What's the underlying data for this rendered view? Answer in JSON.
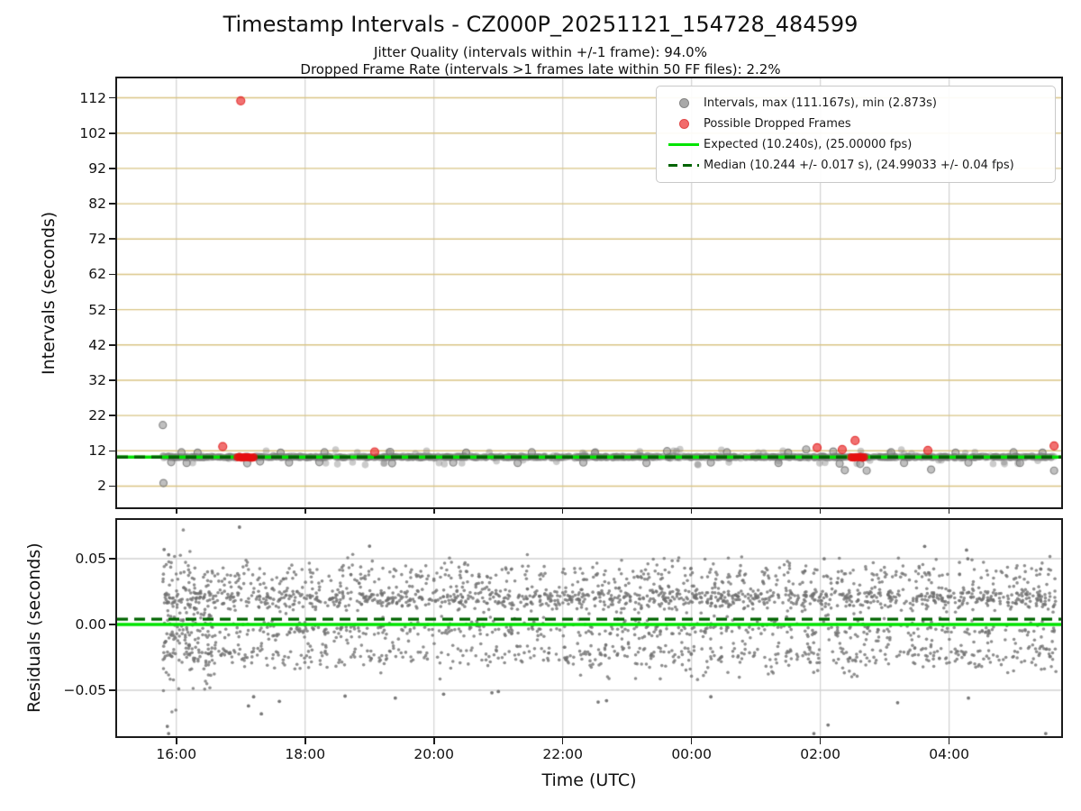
{
  "title": "Timestamp Intervals - CZ000P_20251121_154728_484599",
  "subtitle1": "Jitter Quality (intervals within +/-1 frame): 94.0%",
  "subtitle2": "Dropped Frame Rate (intervals >1 frames late within 50 FF files): 2.2%",
  "colors": {
    "expected_line": "#00e400",
    "median_line": "#006400",
    "gray_marker": "#9a9a9a",
    "red_marker": "#f05050",
    "tan_grid": "#d9c483",
    "gray_grid": "#d2d2d2",
    "spine": "#1a1a1a"
  },
  "legend": {
    "items": [
      {
        "label": "Intervals, max (111.167s), min (2.873s)",
        "marker": "gray-dot"
      },
      {
        "label": "Possible Dropped Frames",
        "marker": "red-dot"
      },
      {
        "label": "Expected (10.240s), (25.00000 fps)",
        "marker": "green-solid-line"
      },
      {
        "label": "Median (10.244 +/- 0.017 s), (24.99033 +/- 0.04 fps)",
        "marker": "dark-green-dashed-line"
      }
    ]
  },
  "chart_data": [
    {
      "type": "scatter",
      "title": "Timestamp Intervals - CZ000P_20251121_154728_484599",
      "ylabel": "Intervals (seconds)",
      "ylim": [
        -4,
        117.5
      ],
      "yticks": [
        2,
        12,
        22,
        32,
        42,
        52,
        62,
        72,
        82,
        92,
        102,
        112
      ],
      "x_axis": {
        "unit": "hours since 15:00 UTC",
        "xlim": [
          0.08,
          14.74
        ],
        "ticks": [
          {
            "h": 1,
            "label": "16:00"
          },
          {
            "h": 3,
            "label": "18:00"
          },
          {
            "h": 5,
            "label": "20:00"
          },
          {
            "h": 7,
            "label": "22:00"
          },
          {
            "h": 9,
            "label": "00:00"
          },
          {
            "h": 11,
            "label": "02:00"
          },
          {
            "h": 13,
            "label": "04:00"
          }
        ]
      },
      "grid": {
        "horizontal_color": "#d9c483",
        "vertical_color": "#d2d2d2"
      },
      "expected_line": {
        "y": 10.24,
        "color": "#00e400",
        "style": "solid",
        "fps": 25.0
      },
      "median_line": {
        "y": 10.244,
        "color": "#006400",
        "style": "dashed",
        "fps": 24.99033
      },
      "stats": {
        "max_interval_s": 111.167,
        "min_interval_s": 2.873,
        "expected_s": 10.24,
        "expected_fps": 25.0,
        "median_s": 10.244,
        "median_s_err": 0.017,
        "median_fps": 24.99033,
        "median_fps_err": 0.04,
        "jitter_quality_pct": 94.0,
        "dropped_frame_rate_pct": 2.2
      },
      "gray_band": {
        "x_start": 0.79,
        "x_end": 14.66,
        "center_s": 10.24,
        "spread_s": 0.16,
        "count": 1500,
        "bump_fraction": 0.035
      },
      "gray_points": [
        [
          0.79,
          19.3
        ],
        [
          0.8,
          2.873
        ],
        [
          1.08,
          11.6
        ],
        [
          1.33,
          11.5
        ],
        [
          2.62,
          11.5
        ],
        [
          3.3,
          11.6
        ],
        [
          4.32,
          11.7
        ],
        [
          5.5,
          11.5
        ],
        [
          6.52,
          11.6
        ],
        [
          7.5,
          11.5
        ],
        [
          8.62,
          11.9
        ],
        [
          9.55,
          11.6
        ],
        [
          10.5,
          11.5
        ],
        [
          10.78,
          12.4
        ],
        [
          11.2,
          11.8
        ],
        [
          12.1,
          11.6
        ],
        [
          13.1,
          11.5
        ],
        [
          14.0,
          11.6
        ],
        [
          14.45,
          11.5
        ],
        [
          0.92,
          8.8
        ],
        [
          1.16,
          8.6
        ],
        [
          2.1,
          8.5
        ],
        [
          2.3,
          9.0
        ],
        [
          2.75,
          8.7
        ],
        [
          3.22,
          8.8
        ],
        [
          4.35,
          8.5
        ],
        [
          5.3,
          8.7
        ],
        [
          6.3,
          8.6
        ],
        [
          7.32,
          8.7
        ],
        [
          8.3,
          8.6
        ],
        [
          9.3,
          8.7
        ],
        [
          10.35,
          8.6
        ],
        [
          11.3,
          8.4
        ],
        [
          11.62,
          8.3
        ],
        [
          12.3,
          8.6
        ],
        [
          13.3,
          8.7
        ],
        [
          14.1,
          8.6
        ],
        [
          11.38,
          6.5
        ],
        [
          11.72,
          6.4
        ],
        [
          12.72,
          6.7
        ],
        [
          14.63,
          6.4
        ]
      ],
      "red_points": [
        [
          1.72,
          13.2
        ],
        [
          2.0,
          111.167
        ],
        [
          4.08,
          11.7
        ],
        [
          10.95,
          12.9
        ],
        [
          11.34,
          12.35
        ],
        [
          11.54,
          14.9
        ],
        [
          12.67,
          12.1
        ],
        [
          14.63,
          13.4
        ]
      ],
      "red_clusters": [
        {
          "x_start": 1.95,
          "x_end": 2.2,
          "y": 10.15,
          "count": 10
        },
        {
          "x_start": 11.48,
          "x_end": 11.68,
          "y": 10.15,
          "count": 8
        }
      ]
    },
    {
      "type": "scatter",
      "ylabel": "Residuals (seconds)",
      "xlabel": "Time (UTC)",
      "ylim": [
        -0.085,
        0.0795
      ],
      "yticks": [
        {
          "v": 0.05,
          "label": "0.05"
        },
        {
          "v": 0.0,
          "label": "0.00"
        },
        {
          "v": -0.05,
          "label": "−0.05"
        }
      ],
      "grid": {
        "horizontal_color": "#d2d2d2",
        "vertical_color": "#d2d2d2"
      },
      "expected_line": {
        "y": 0.0,
        "color": "#00e400",
        "style": "solid"
      },
      "median_line": {
        "y": 0.004,
        "color": "#006400",
        "style": "dashed"
      },
      "cloud": {
        "x_start": 0.79,
        "x_end": 14.66,
        "count": 2600,
        "bands": [
          {
            "center": 0.02,
            "sd": 0.0045,
            "weight": 0.4
          },
          {
            "center": 0.038,
            "sd": 0.005,
            "weight": 0.14
          },
          {
            "center": -0.004,
            "sd": 0.0035,
            "weight": 0.16
          },
          {
            "center": -0.0235,
            "sd": 0.005,
            "weight": 0.2
          },
          {
            "uniform": [
              -0.042,
              0.052
            ],
            "weight": 0.1
          }
        ],
        "early_extra": {
          "x_range": [
            0.79,
            1.55
          ],
          "count": 130,
          "sd": 0.028
        }
      },
      "outliers": [
        [
          0.81,
          0.057
        ],
        [
          0.88,
          0.053
        ],
        [
          0.88,
          -0.083
        ],
        [
          0.86,
          -0.0775
        ],
        [
          1.98,
          0.074
        ],
        [
          2.12,
          -0.062
        ],
        [
          2.2,
          -0.055
        ],
        [
          2.32,
          -0.068
        ],
        [
          2.6,
          -0.0585
        ],
        [
          3.62,
          -0.0545
        ],
        [
          4.0,
          0.0596
        ],
        [
          4.4,
          -0.056
        ],
        [
          5.15,
          -0.053
        ],
        [
          5.9,
          -0.052
        ],
        [
          6.0,
          -0.051
        ],
        [
          7.55,
          -0.059
        ],
        [
          7.68,
          -0.058
        ],
        [
          9.3,
          -0.055
        ],
        [
          10.9,
          -0.083
        ],
        [
          11.06,
          0.05
        ],
        [
          11.12,
          -0.0765
        ],
        [
          12.2,
          -0.0595
        ],
        [
          12.62,
          0.0594
        ],
        [
          13.27,
          0.0566
        ],
        [
          13.29,
          0.05
        ],
        [
          13.3,
          -0.056
        ],
        [
          14.5,
          -0.083
        ]
      ]
    }
  ]
}
